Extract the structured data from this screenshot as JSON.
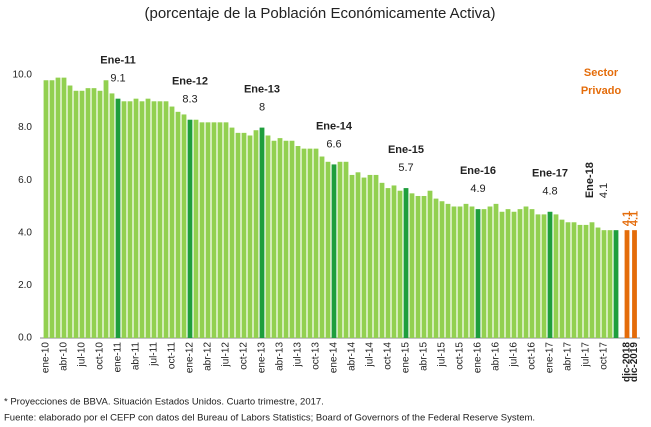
{
  "chart_data": {
    "type": "bar",
    "title": "(porcentaje de la Población Económicamente Activa)",
    "categories": [
      "ene-10",
      null,
      null,
      "abr-10",
      null,
      null,
      "jul-10",
      null,
      null,
      "oct-10",
      null,
      null,
      "ene-11",
      null,
      null,
      "abr-11",
      null,
      null,
      "jul-11",
      null,
      null,
      "oct-11",
      null,
      null,
      "ene-12",
      null,
      null,
      "abr-12",
      null,
      null,
      "jul-12",
      null,
      null,
      "oct-12",
      null,
      null,
      "ene-13",
      null,
      null,
      "abr-13",
      null,
      null,
      "jul-13",
      null,
      null,
      "oct-13",
      null,
      null,
      "ene-14",
      null,
      null,
      "abr-14",
      null,
      null,
      "jul-14",
      null,
      null,
      "oct-14",
      null,
      null,
      "ene-15",
      null,
      null,
      "abr-15",
      null,
      null,
      "jul-15",
      null,
      null,
      "oct-15",
      null,
      null,
      "ene-16",
      null,
      null,
      "abr-16",
      null,
      null,
      "jul-16",
      null,
      null,
      "oct-16",
      null,
      null,
      "ene-17",
      null,
      null,
      "abr-17",
      null,
      null,
      "jul-17",
      null,
      null,
      "oct-17",
      null,
      null,
      "dic-2018",
      "dic-2019"
    ],
    "values": [
      9.8,
      9.8,
      9.9,
      9.9,
      9.6,
      9.4,
      9.4,
      9.5,
      9.5,
      9.4,
      9.8,
      9.3,
      9.1,
      9.0,
      9.0,
      9.1,
      9.0,
      9.1,
      9.0,
      9.0,
      9.0,
      8.8,
      8.6,
      8.5,
      8.3,
      8.3,
      8.2,
      8.2,
      8.2,
      8.2,
      8.2,
      8.0,
      7.8,
      7.8,
      7.7,
      7.9,
      8.0,
      7.7,
      7.5,
      7.6,
      7.5,
      7.5,
      7.3,
      7.2,
      7.2,
      7.2,
      6.9,
      6.7,
      6.6,
      6.7,
      6.7,
      6.2,
      6.3,
      6.1,
      6.2,
      6.2,
      5.9,
      5.7,
      5.8,
      5.6,
      5.7,
      5.5,
      5.4,
      5.4,
      5.6,
      5.3,
      5.2,
      5.1,
      5.0,
      5.0,
      5.1,
      5.0,
      4.9,
      4.9,
      5.0,
      5.1,
      4.8,
      4.9,
      4.8,
      4.9,
      5.0,
      4.9,
      4.7,
      4.7,
      4.8,
      4.7,
      4.5,
      4.4,
      4.4,
      4.3,
      4.3,
      4.4,
      4.2,
      4.1,
      4.1,
      4.1,
      4.1,
      4.1
    ],
    "colors": [
      "#92d050",
      "#92d050",
      "#92d050",
      "#92d050",
      "#92d050",
      "#92d050",
      "#92d050",
      "#92d050",
      "#92d050",
      "#92d050",
      "#92d050",
      "#92d050",
      "#1e9e3c",
      "#92d050",
      "#92d050",
      "#92d050",
      "#92d050",
      "#92d050",
      "#92d050",
      "#92d050",
      "#92d050",
      "#92d050",
      "#92d050",
      "#92d050",
      "#1e9e3c",
      "#92d050",
      "#92d050",
      "#92d050",
      "#92d050",
      "#92d050",
      "#92d050",
      "#92d050",
      "#92d050",
      "#92d050",
      "#92d050",
      "#92d050",
      "#1e9e3c",
      "#92d050",
      "#92d050",
      "#92d050",
      "#92d050",
      "#92d050",
      "#92d050",
      "#92d050",
      "#92d050",
      "#92d050",
      "#92d050",
      "#92d050",
      "#1e9e3c",
      "#92d050",
      "#92d050",
      "#92d050",
      "#92d050",
      "#92d050",
      "#92d050",
      "#92d050",
      "#92d050",
      "#92d050",
      "#92d050",
      "#92d050",
      "#1e9e3c",
      "#92d050",
      "#92d050",
      "#92d050",
      "#92d050",
      "#92d050",
      "#92d050",
      "#92d050",
      "#92d050",
      "#92d050",
      "#92d050",
      "#92d050",
      "#1e9e3c",
      "#92d050",
      "#92d050",
      "#92d050",
      "#92d050",
      "#92d050",
      "#92d050",
      "#92d050",
      "#92d050",
      "#92d050",
      "#92d050",
      "#92d050",
      "#1e9e3c",
      "#92d050",
      "#92d050",
      "#92d050",
      "#92d050",
      "#92d050",
      "#92d050",
      "#92d050",
      "#92d050",
      "#92d050",
      "#92d050",
      "#1e9e3c",
      "#e46c0a",
      "#e46c0a"
    ],
    "ylim": [
      0,
      10
    ],
    "yticks": [
      {
        "value": 0,
        "label": "0.0"
      },
      {
        "value": 2,
        "label": "2.0"
      },
      {
        "value": 4,
        "label": "4.0"
      },
      {
        "value": 6,
        "label": "6.0"
      },
      {
        "value": 8,
        "label": "8.0"
      },
      {
        "value": 10,
        "label": "10.0"
      }
    ],
    "annotations": [
      {
        "label": "Ene-11",
        "value": 9.1
      },
      {
        "label": "Ene-12",
        "value": 8.3
      },
      {
        "label": "Ene-13",
        "value": 8.0
      },
      {
        "label": "Ene-14",
        "value": 6.6
      },
      {
        "label": "Ene-15",
        "value": 5.7
      },
      {
        "label": "Ene-16",
        "value": 4.9
      },
      {
        "label": "Ene-17",
        "value": 4.8
      },
      {
        "label": "Ene-18",
        "value": 4.1
      }
    ],
    "side_note": [
      "Sector",
      "Privado"
    ],
    "footnotes": [
      "* Proyecciones de BBVA. Situación Estados Unidos. Cuarto trimestre, 2017.",
      "Fuente: elaborado por el CEFP con datos del Bureau of Labors Statistics; Board of Governors of the Federal Reserve System."
    ]
  }
}
